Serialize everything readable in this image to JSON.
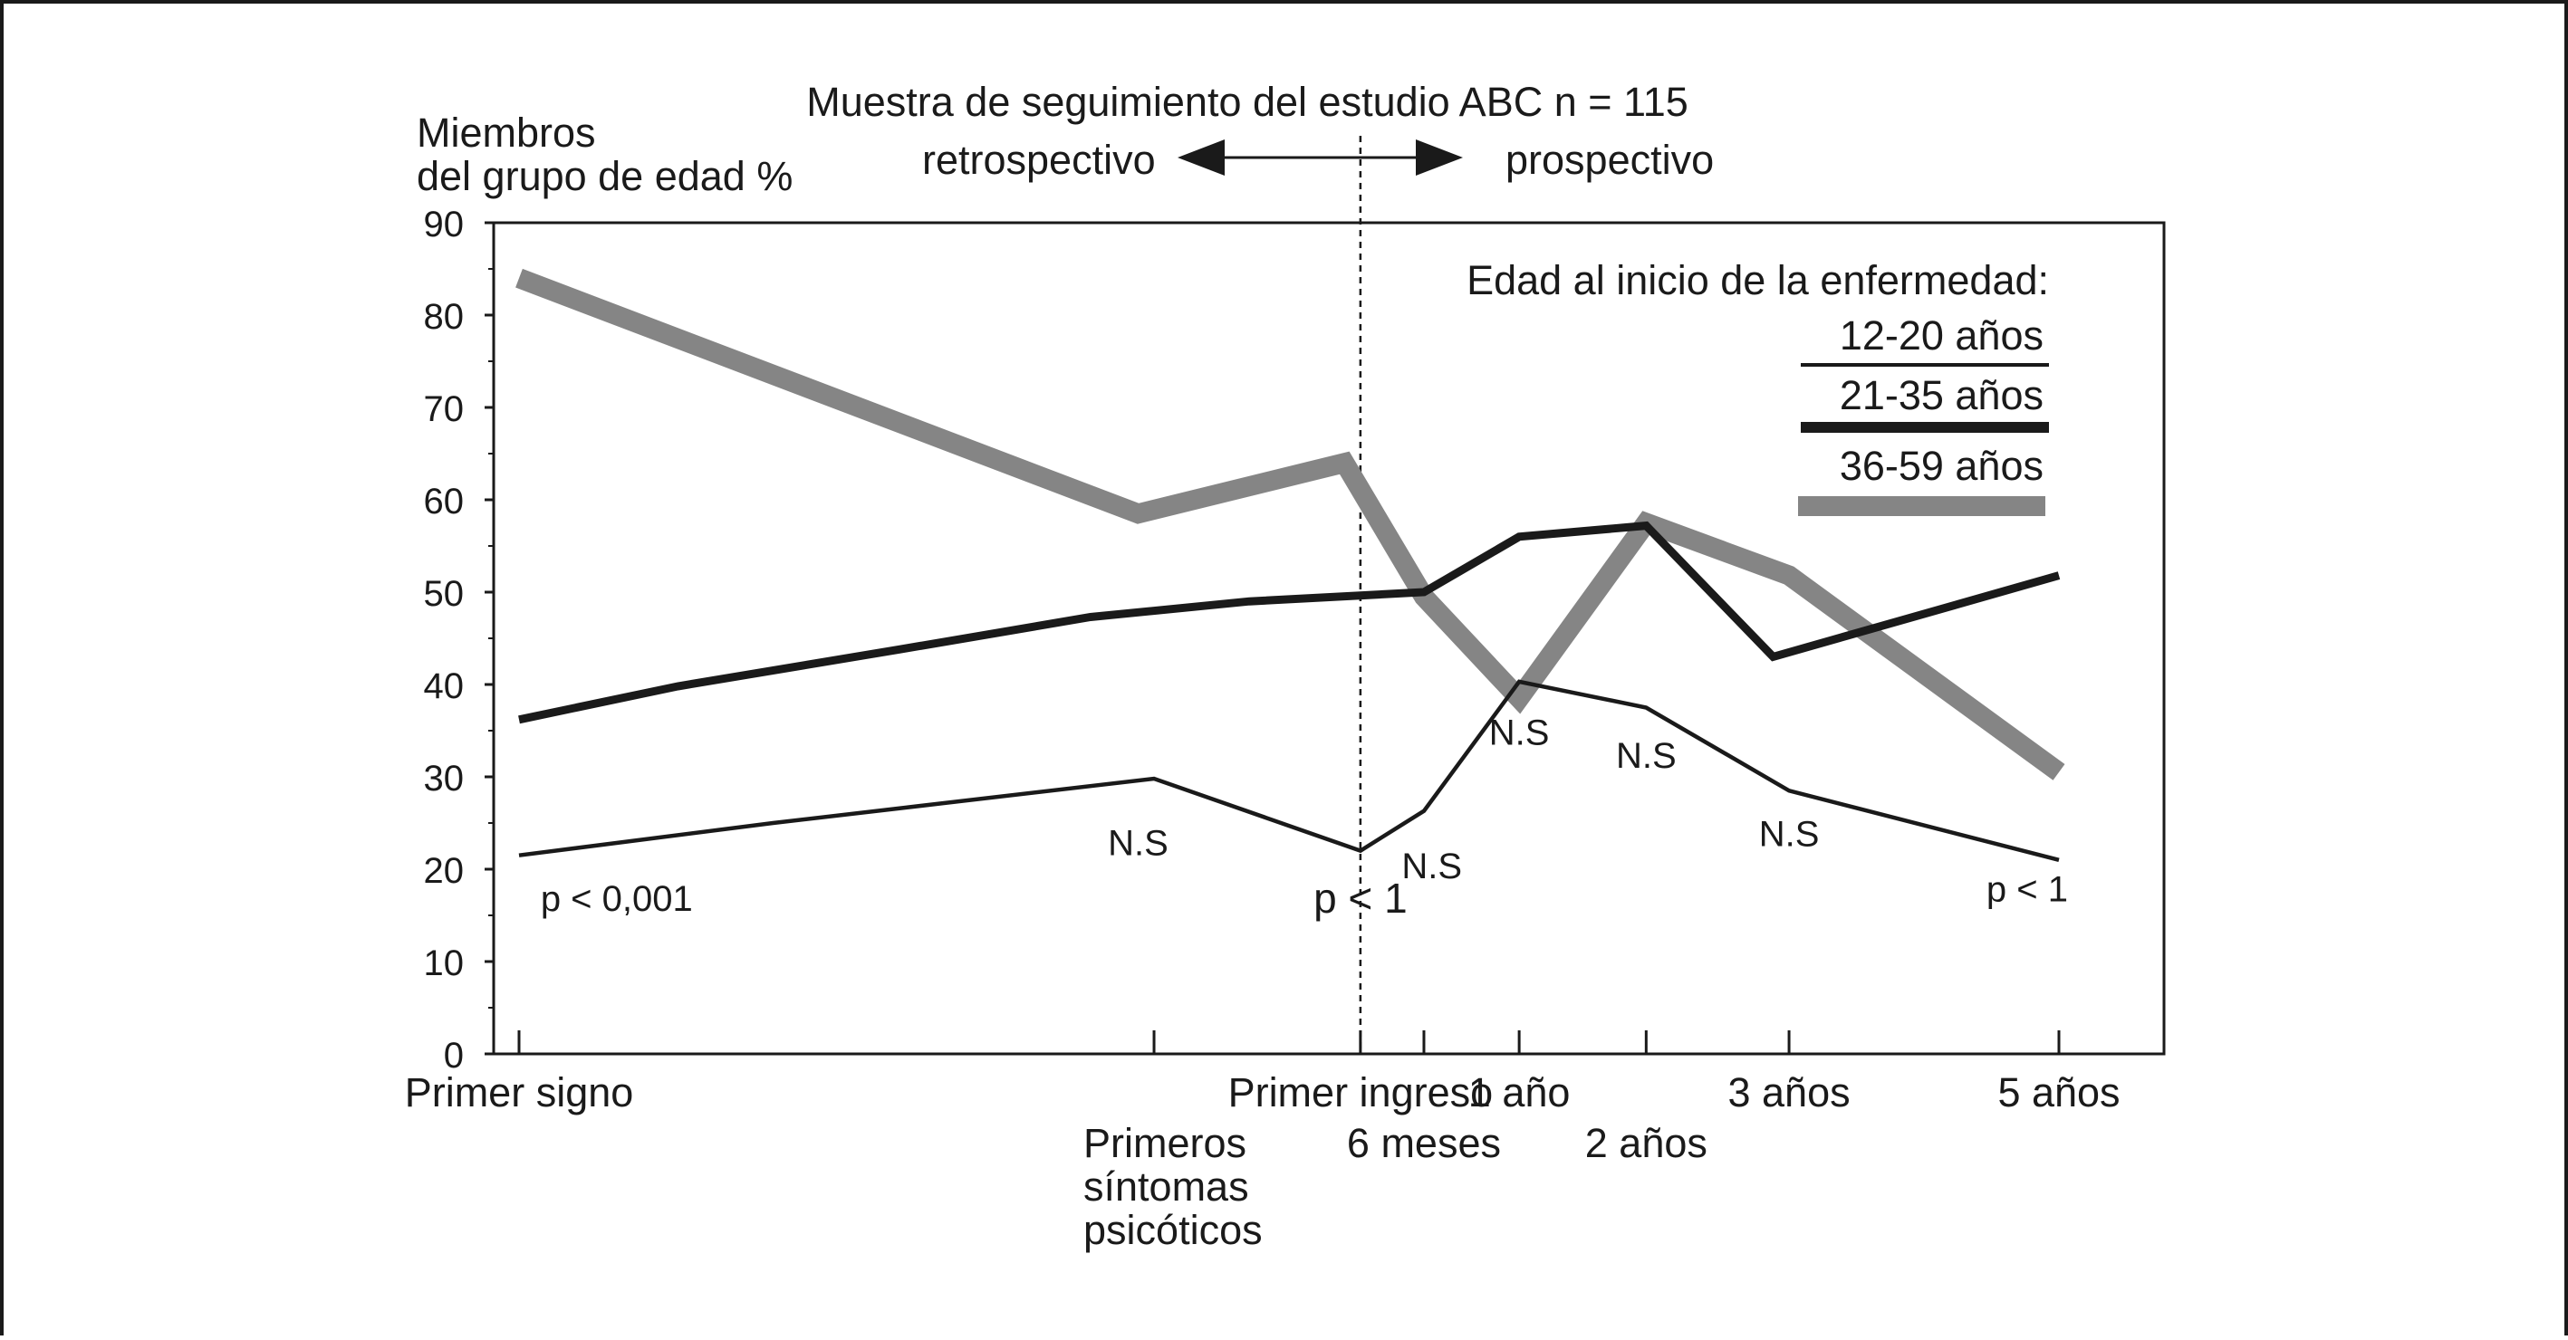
{
  "chart_data": {
    "type": "line",
    "title": "Muestra de seguimiento del estudio ABC n = 115",
    "ylabel_line1": "Miembros",
    "ylabel_line2": "del grupo de edad %",
    "ylim": [
      0,
      90
    ],
    "yticks": [
      0,
      10,
      20,
      30,
      40,
      50,
      60,
      70,
      80,
      90
    ],
    "grid": false,
    "x_positions": [
      0,
      4,
      5.3,
      5.7,
      6.3,
      7.1,
      8,
      9.7
    ],
    "x_labels": [
      {
        "x": 0,
        "lines": [
          "Primer signo"
        ],
        "row": 0
      },
      {
        "x": 4,
        "lines": [
          "Primeros",
          "síntomas",
          "psicóticos"
        ],
        "row": 1
      },
      {
        "x": 5.3,
        "lines": [
          "Primer ingreso"
        ],
        "row": 0
      },
      {
        "x": 5.7,
        "lines": [
          "6 meses"
        ],
        "row": 1
      },
      {
        "x": 6.3,
        "lines": [
          "1 año"
        ],
        "row": 0
      },
      {
        "x": 7.1,
        "lines": [
          "2 años"
        ],
        "row": 1
      },
      {
        "x": 8,
        "lines": [
          "3 años"
        ],
        "row": 0
      },
      {
        "x": 9.7,
        "lines": [
          "5 años"
        ],
        "row": 0
      }
    ],
    "arrow": {
      "left": "retrospectivo",
      "right": "prospectivo"
    },
    "divider_x": 5.3,
    "legend": {
      "title": "Edad al inicio de la enfermedad:",
      "position": "top-right"
    },
    "series": [
      {
        "name": "12-20 años",
        "color": "#1a1a1a",
        "weight": "thin",
        "points": [
          [
            0,
            21.5
          ],
          [
            1.6,
            25
          ],
          [
            4,
            29.8
          ],
          [
            5.3,
            22
          ],
          [
            5.7,
            26.3
          ],
          [
            6.3,
            40.3
          ],
          [
            7.1,
            37.5
          ],
          [
            8,
            28.5
          ],
          [
            9.7,
            21
          ]
        ]
      },
      {
        "name": "21-35 años",
        "color": "#1a1a1a",
        "weight": "medium",
        "points": [
          [
            0,
            36.2
          ],
          [
            1,
            39.8
          ],
          [
            2.4,
            43.8
          ],
          [
            3.6,
            47.3
          ],
          [
            4.6,
            49
          ],
          [
            5.7,
            50
          ],
          [
            6.3,
            56
          ],
          [
            7.1,
            57.2
          ],
          [
            7.9,
            43
          ],
          [
            9.7,
            51.8
          ]
        ]
      },
      {
        "name": "36-59 años",
        "color": "#858585",
        "weight": "thick",
        "points": [
          [
            0,
            84
          ],
          [
            3.9,
            58.5
          ],
          [
            5.2,
            64
          ],
          [
            5.7,
            49.5
          ],
          [
            6.3,
            38.5
          ],
          [
            7.1,
            57.5
          ],
          [
            8,
            51.8
          ],
          [
            9.7,
            30.5
          ]
        ]
      }
    ],
    "annotations": [
      {
        "text": "p < 0,001",
        "x": 0.25,
        "y": 15.5,
        "size": "small"
      },
      {
        "text": "N.S",
        "x": 3.9,
        "y": 21.5,
        "size": "small"
      },
      {
        "text": "p < 1",
        "x": 5.3,
        "y": 15.3,
        "size": "large"
      },
      {
        "text": "N.S",
        "x": 5.75,
        "y": 19,
        "size": "small"
      },
      {
        "text": "N.S",
        "x": 6.3,
        "y": 33.5,
        "size": "small"
      },
      {
        "text": "N.S",
        "x": 7.1,
        "y": 31,
        "size": "small"
      },
      {
        "text": "N.S",
        "x": 8,
        "y": 22.5,
        "size": "small"
      },
      {
        "text": "p < 1",
        "x": 9.5,
        "y": 16.5,
        "size": "small"
      }
    ]
  }
}
